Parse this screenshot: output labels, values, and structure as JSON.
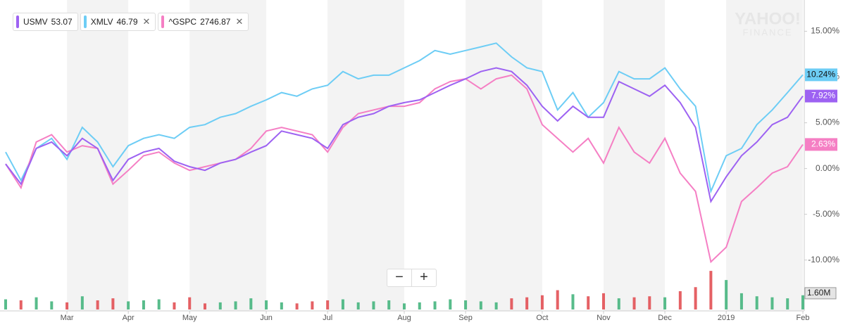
{
  "chart_data": {
    "type": "line",
    "watermark": [
      "YAHOO!",
      "FINANCE"
    ],
    "categories": [
      null,
      null,
      null,
      null,
      "Mar",
      null,
      null,
      null,
      "Apr",
      null,
      null,
      null,
      "May",
      null,
      null,
      null,
      null,
      "Jun",
      null,
      null,
      null,
      "Jul",
      null,
      null,
      null,
      null,
      "Aug",
      null,
      null,
      null,
      "Sep",
      null,
      null,
      null,
      null,
      "Oct",
      null,
      null,
      null,
      "Nov",
      null,
      null,
      null,
      "Dec",
      null,
      null,
      null,
      "2019",
      null,
      null,
      null,
      null,
      "Feb"
    ],
    "series": [
      {
        "name": "USMV",
        "price": 53.07,
        "color": "#9d62f2",
        "values": [
          0.5,
          -1.7,
          2.2,
          2.9,
          1.4,
          3.3,
          2.2,
          -1.3,
          1.0,
          1.8,
          2.2,
          0.8,
          0.2,
          -0.2,
          0.6,
          1.0,
          1.8,
          2.5,
          4.1,
          3.7,
          3.3,
          2.2,
          4.8,
          5.6,
          6.0,
          6.8,
          7.2,
          7.5,
          8.3,
          9.1,
          9.8,
          10.6,
          11.0,
          10.6,
          9.1,
          6.8,
          5.2,
          6.8,
          5.6,
          5.6,
          9.5,
          8.7,
          7.9,
          9.1,
          7.2,
          4.5,
          -3.6,
          -0.9,
          1.4,
          2.9,
          4.8,
          5.6,
          7.92
        ],
        "value_labels": [
          null,
          null,
          null,
          null,
          null,
          null,
          null,
          null,
          null,
          null,
          null,
          null,
          null,
          null,
          null,
          null,
          null,
          null,
          null,
          null,
          null,
          null,
          null,
          null,
          null,
          null,
          null,
          null,
          null,
          null,
          null,
          null,
          null,
          null,
          null,
          null,
          null,
          null,
          null,
          null,
          null,
          null,
          null,
          null,
          null,
          null,
          null,
          null,
          null,
          null,
          null,
          null,
          "7.92%"
        ]
      },
      {
        "name": "XMLV",
        "price": 46.79,
        "color": "#6dcdf5",
        "values": [
          1.8,
          -1.3,
          2.2,
          3.3,
          1.0,
          4.5,
          2.9,
          0.2,
          2.5,
          3.3,
          3.7,
          3.3,
          4.5,
          4.8,
          5.6,
          6.0,
          6.8,
          7.5,
          8.3,
          7.9,
          8.7,
          9.1,
          10.6,
          9.8,
          10.2,
          10.2,
          11.0,
          11.8,
          12.9,
          12.5,
          12.9,
          13.3,
          13.7,
          12.2,
          11.0,
          10.6,
          6.4,
          8.3,
          5.6,
          7.2,
          10.6,
          9.8,
          9.8,
          11.0,
          8.7,
          6.8,
          -2.5,
          1.4,
          2.2,
          4.8,
          6.4,
          8.3,
          10.24
        ],
        "value_labels": [
          null,
          null,
          null,
          null,
          null,
          null,
          null,
          null,
          null,
          null,
          null,
          null,
          null,
          null,
          null,
          null,
          null,
          null,
          null,
          null,
          null,
          null,
          null,
          null,
          null,
          null,
          null,
          null,
          null,
          null,
          null,
          null,
          null,
          null,
          null,
          null,
          null,
          null,
          null,
          null,
          null,
          null,
          null,
          null,
          null,
          null,
          null,
          null,
          null,
          null,
          null,
          null,
          "10.24%"
        ]
      },
      {
        "name": "^GSPC",
        "price": 2746.87,
        "color": "#f57fc4",
        "values": [
          0.5,
          -2.1,
          2.9,
          3.7,
          1.8,
          2.5,
          2.2,
          -1.7,
          -0.2,
          1.4,
          1.8,
          0.6,
          -0.2,
          0.2,
          0.6,
          1.0,
          2.2,
          4.1,
          4.5,
          4.1,
          3.7,
          1.8,
          4.5,
          6.0,
          6.4,
          6.8,
          6.8,
          7.2,
          8.7,
          9.5,
          9.8,
          8.7,
          9.8,
          10.2,
          8.7,
          4.8,
          3.3,
          1.8,
          3.3,
          0.6,
          4.5,
          1.8,
          0.6,
          3.3,
          -0.5,
          -2.5,
          -10.2,
          -8.6,
          -3.6,
          -2.1,
          -0.5,
          0.2,
          2.63
        ],
        "value_labels": [
          null,
          null,
          null,
          null,
          null,
          null,
          null,
          null,
          null,
          null,
          null,
          null,
          null,
          null,
          null,
          null,
          null,
          null,
          null,
          null,
          null,
          null,
          null,
          null,
          null,
          null,
          null,
          null,
          null,
          null,
          null,
          null,
          null,
          null,
          null,
          null,
          null,
          null,
          null,
          null,
          null,
          null,
          null,
          null,
          null,
          null,
          null,
          null,
          null,
          null,
          null,
          null,
          "2.63%"
        ]
      }
    ],
    "ylim": [
      -15.4,
      17.8
    ],
    "yticks": [
      {
        "value": 15,
        "label": "15.00%"
      },
      {
        "value": 10,
        "label": "10.00%"
      },
      {
        "value": 5,
        "label": "5.00%"
      },
      {
        "value": 0,
        "label": "0.00%"
      },
      {
        "value": -5,
        "label": "-5.00%"
      },
      {
        "value": -10,
        "label": "-10.00%"
      }
    ],
    "grid": false,
    "volume": {
      "values": [
        1.0,
        0.9,
        1.2,
        0.8,
        0.7,
        1.3,
        0.9,
        1.1,
        0.8,
        0.9,
        1.0,
        0.7,
        1.2,
        0.6,
        0.7,
        0.8,
        1.1,
        0.9,
        0.7,
        0.6,
        0.8,
        0.9,
        1.0,
        0.7,
        0.8,
        0.9,
        0.6,
        0.7,
        0.8,
        1.0,
        0.9,
        0.8,
        0.7,
        1.1,
        1.2,
        1.4,
        1.9,
        1.5,
        1.3,
        1.6,
        1.1,
        1.2,
        1.3,
        1.2,
        1.8,
        2.2,
        3.8,
        2.9,
        1.6,
        1.3,
        1.2,
        1.1,
        1.4
      ],
      "colors": [
        "#3bb077",
        "#e0454a",
        "#3bb077",
        "#3bb077",
        "#e0454a",
        "#3bb077",
        "#e0454a",
        "#e0454a",
        "#3bb077",
        "#3bb077",
        "#3bb077",
        "#e0454a",
        "#e0454a",
        "#e0454a",
        "#3bb077",
        "#3bb077",
        "#3bb077",
        "#3bb077",
        "#3bb077",
        "#e0454a",
        "#e0454a",
        "#e0454a",
        "#3bb077",
        "#3bb077",
        "#3bb077",
        "#3bb077",
        "#3bb077",
        "#3bb077",
        "#3bb077",
        "#3bb077",
        "#3bb077",
        "#3bb077",
        "#3bb077",
        "#e0454a",
        "#e0454a",
        "#e0454a",
        "#e0454a",
        "#3bb077",
        "#e0454a",
        "#e0454a",
        "#3bb077",
        "#e0454a",
        "#e0454a",
        "#3bb077",
        "#e0454a",
        "#e0454a",
        "#e0454a",
        "#3bb077",
        "#3bb077",
        "#3bb077",
        "#3bb077",
        "#3bb077",
        "#3bb077"
      ],
      "ylim": [
        0,
        4.5
      ],
      "yticks": [
        {
          "value": 1.6,
          "label": "1.60M"
        }
      ]
    }
  }
}
